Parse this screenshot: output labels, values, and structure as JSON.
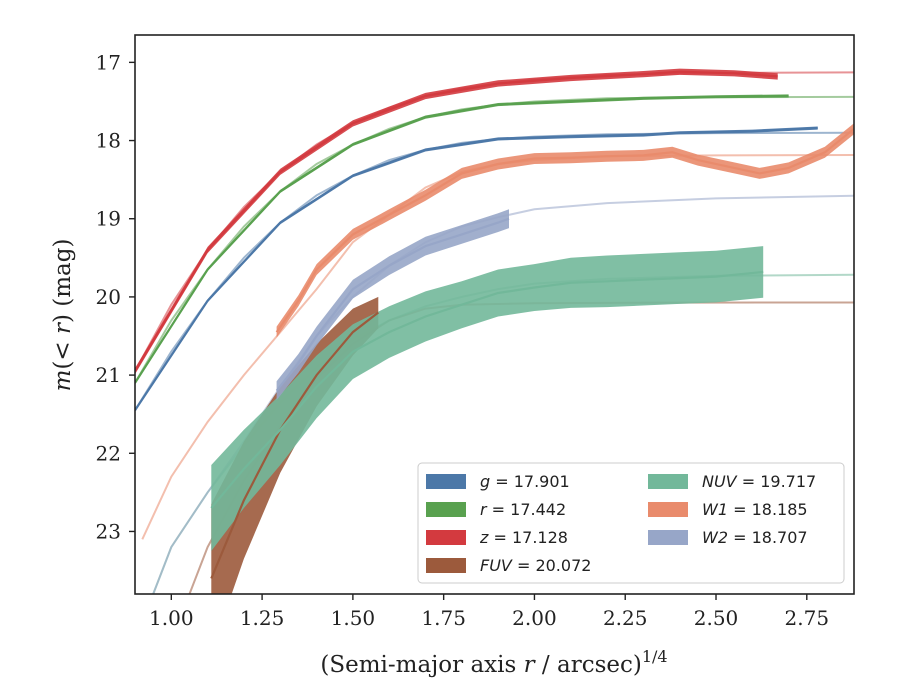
{
  "chart_data": {
    "type": "line",
    "xlabel": "(Semi-major axis r / arcsec)^{1/4}",
    "ylabel": "m(< r) (mag)",
    "xlim": [
      0.9,
      2.88
    ],
    "ylim": [
      23.8,
      16.65
    ],
    "y_inverted": true,
    "x_ticks": [
      "1.00",
      "1.25",
      "1.50",
      "1.75",
      "2.00",
      "2.25",
      "2.50",
      "2.75"
    ],
    "x_tick_values": [
      1.0,
      1.25,
      1.5,
      1.75,
      2.0,
      2.25,
      2.5,
      2.75
    ],
    "y_ticks": [
      "17",
      "18",
      "19",
      "20",
      "21",
      "22",
      "23"
    ],
    "y_tick_values": [
      17,
      18,
      19,
      20,
      21,
      22,
      23
    ],
    "grid": false,
    "legend_position": "lower-right",
    "series": [
      {
        "name": "g = 17.901",
        "color": "#4c78a8",
        "fit": [
          [
            0.9,
            21.45
          ],
          [
            1.0,
            20.7
          ],
          [
            1.1,
            20.05
          ],
          [
            1.2,
            19.5
          ],
          [
            1.3,
            19.05
          ],
          [
            1.4,
            18.7
          ],
          [
            1.5,
            18.45
          ],
          [
            1.6,
            18.25
          ],
          [
            1.7,
            18.12
          ],
          [
            1.8,
            18.03
          ],
          [
            1.9,
            17.98
          ],
          [
            2.0,
            17.95
          ],
          [
            2.2,
            17.92
          ],
          [
            2.5,
            17.905
          ],
          [
            2.88,
            17.901
          ]
        ],
        "data": [
          [
            0.9,
            21.45
          ],
          [
            1.1,
            20.05
          ],
          [
            1.3,
            19.05
          ],
          [
            1.5,
            18.45
          ],
          [
            1.7,
            18.12
          ],
          [
            1.9,
            17.98
          ],
          [
            2.1,
            17.95
          ],
          [
            2.3,
            17.93
          ],
          [
            2.4,
            17.9
          ],
          [
            2.6,
            17.88
          ],
          [
            2.78,
            17.84
          ]
        ],
        "band_halfwidth": 0.02
      },
      {
        "name": "r = 17.442",
        "color": "#59a14f",
        "fit": [
          [
            0.9,
            21.1
          ],
          [
            1.0,
            20.3
          ],
          [
            1.1,
            19.65
          ],
          [
            1.2,
            19.1
          ],
          [
            1.3,
            18.65
          ],
          [
            1.4,
            18.3
          ],
          [
            1.5,
            18.05
          ],
          [
            1.6,
            17.85
          ],
          [
            1.7,
            17.7
          ],
          [
            1.8,
            17.6
          ],
          [
            1.9,
            17.54
          ],
          [
            2.0,
            17.5
          ],
          [
            2.2,
            17.46
          ],
          [
            2.5,
            17.445
          ],
          [
            2.88,
            17.442
          ]
        ],
        "data": [
          [
            0.9,
            21.1
          ],
          [
            1.1,
            19.65
          ],
          [
            1.3,
            18.65
          ],
          [
            1.5,
            18.05
          ],
          [
            1.7,
            17.7
          ],
          [
            1.9,
            17.54
          ],
          [
            2.1,
            17.5
          ],
          [
            2.3,
            17.46
          ],
          [
            2.5,
            17.44
          ],
          [
            2.7,
            17.43
          ]
        ],
        "band_halfwidth": 0.02
      },
      {
        "name": "z = 17.128",
        "color": "#d33a3f",
        "fit": [
          [
            0.9,
            20.95
          ],
          [
            1.0,
            20.1
          ],
          [
            1.1,
            19.4
          ],
          [
            1.2,
            18.85
          ],
          [
            1.3,
            18.4
          ],
          [
            1.4,
            18.05
          ],
          [
            1.5,
            17.78
          ],
          [
            1.6,
            17.58
          ],
          [
            1.7,
            17.43
          ],
          [
            1.8,
            17.33
          ],
          [
            1.9,
            17.27
          ],
          [
            2.0,
            17.22
          ],
          [
            2.2,
            17.16
          ],
          [
            2.5,
            17.135
          ],
          [
            2.88,
            17.128
          ]
        ],
        "data": [
          [
            0.9,
            20.95
          ],
          [
            1.1,
            19.4
          ],
          [
            1.3,
            18.4
          ],
          [
            1.5,
            17.78
          ],
          [
            1.7,
            17.43
          ],
          [
            1.9,
            17.27
          ],
          [
            2.1,
            17.2
          ],
          [
            2.3,
            17.15
          ],
          [
            2.4,
            17.12
          ],
          [
            2.55,
            17.14
          ],
          [
            2.67,
            17.18
          ]
        ],
        "band_halfwidth": 0.04
      },
      {
        "name": "FUV = 20.072",
        "color": "#9c5a3c",
        "fit": [
          [
            1.05,
            23.8
          ],
          [
            1.1,
            23.2
          ],
          [
            1.2,
            22.35
          ],
          [
            1.3,
            21.65
          ],
          [
            1.4,
            21.05
          ],
          [
            1.5,
            20.6
          ],
          [
            1.6,
            20.3
          ],
          [
            1.7,
            20.15
          ],
          [
            1.8,
            20.1
          ],
          [
            2.0,
            20.08
          ],
          [
            2.4,
            20.073
          ],
          [
            2.88,
            20.072
          ]
        ],
        "data": [
          [
            1.11,
            23.6
          ],
          [
            1.2,
            22.6
          ],
          [
            1.3,
            21.7
          ],
          [
            1.4,
            21.0
          ],
          [
            1.5,
            20.45
          ],
          [
            1.57,
            20.2
          ]
        ],
        "band_halfwidth": [
          0.95,
          0.75,
          0.55,
          0.4,
          0.3,
          0.2
        ]
      },
      {
        "name": "NUV = 19.717",
        "color": "#72b89a",
        "fit": [
          [
            0.95,
            23.8
          ],
          [
            1.0,
            23.2
          ],
          [
            1.1,
            22.5
          ],
          [
            1.2,
            21.9
          ],
          [
            1.3,
            21.35
          ],
          [
            1.4,
            20.9
          ],
          [
            1.5,
            20.55
          ],
          [
            1.6,
            20.3
          ],
          [
            1.7,
            20.12
          ],
          [
            1.8,
            20.0
          ],
          [
            1.9,
            19.9
          ],
          [
            2.0,
            19.83
          ],
          [
            2.2,
            19.77
          ],
          [
            2.5,
            19.73
          ],
          [
            2.88,
            19.717
          ]
        ],
        "data": [
          [
            1.11,
            22.7
          ],
          [
            1.2,
            22.2
          ],
          [
            1.3,
            21.7
          ],
          [
            1.4,
            21.15
          ],
          [
            1.5,
            20.7
          ],
          [
            1.6,
            20.45
          ],
          [
            1.7,
            20.25
          ],
          [
            1.8,
            20.1
          ],
          [
            1.9,
            19.95
          ],
          [
            2.0,
            19.88
          ],
          [
            2.1,
            19.82
          ],
          [
            2.2,
            19.8
          ],
          [
            2.3,
            19.78
          ],
          [
            2.4,
            19.76
          ],
          [
            2.5,
            19.74
          ],
          [
            2.63,
            19.68
          ]
        ],
        "band_halfwidth": [
          0.55,
          0.5,
          0.45,
          0.4,
          0.35,
          0.33,
          0.32,
          0.3,
          0.3,
          0.3,
          0.32,
          0.33,
          0.33,
          0.33,
          0.33,
          0.33
        ]
      },
      {
        "name": "W1 = 18.185",
        "color": "#e98b6c",
        "fit": [
          [
            0.92,
            23.1
          ],
          [
            1.0,
            22.3
          ],
          [
            1.1,
            21.6
          ],
          [
            1.2,
            21.0
          ],
          [
            1.3,
            20.45
          ],
          [
            1.4,
            19.9
          ],
          [
            1.5,
            19.3
          ],
          [
            1.6,
            18.95
          ],
          [
            1.7,
            18.6
          ],
          [
            1.8,
            18.4
          ],
          [
            1.9,
            18.3
          ],
          [
            2.0,
            18.25
          ],
          [
            2.2,
            18.2
          ],
          [
            2.5,
            18.19
          ],
          [
            2.88,
            18.185
          ]
        ],
        "data": [
          [
            1.29,
            20.45
          ],
          [
            1.35,
            20.05
          ],
          [
            1.4,
            19.65
          ],
          [
            1.5,
            19.2
          ],
          [
            1.6,
            18.95
          ],
          [
            1.7,
            18.7
          ],
          [
            1.8,
            18.42
          ],
          [
            1.9,
            18.3
          ],
          [
            2.0,
            18.23
          ],
          [
            2.1,
            18.22
          ],
          [
            2.2,
            18.2
          ],
          [
            2.3,
            18.19
          ],
          [
            2.38,
            18.15
          ],
          [
            2.45,
            18.25
          ],
          [
            2.55,
            18.35
          ],
          [
            2.62,
            18.42
          ],
          [
            2.7,
            18.35
          ],
          [
            2.8,
            18.15
          ],
          [
            2.88,
            17.85
          ]
        ],
        "band_halfwidth": 0.07
      },
      {
        "name": "W2 = 18.707",
        "color": "#97a6c8",
        "fit": [
          [
            0.95,
            23.8
          ],
          [
            1.0,
            23.2
          ],
          [
            1.1,
            22.5
          ],
          [
            1.2,
            21.85
          ],
          [
            1.3,
            21.15
          ],
          [
            1.4,
            20.5
          ],
          [
            1.5,
            20.0
          ],
          [
            1.6,
            19.6
          ],
          [
            1.7,
            19.3
          ],
          [
            1.8,
            19.1
          ],
          [
            1.9,
            18.98
          ],
          [
            2.0,
            18.88
          ],
          [
            2.2,
            18.8
          ],
          [
            2.5,
            18.74
          ],
          [
            2.88,
            18.707
          ]
        ],
        "data": [
          [
            1.29,
            21.2
          ],
          [
            1.35,
            20.85
          ],
          [
            1.4,
            20.5
          ],
          [
            1.5,
            19.9
          ],
          [
            1.6,
            19.6
          ],
          [
            1.7,
            19.35
          ],
          [
            1.8,
            19.2
          ],
          [
            1.9,
            19.05
          ],
          [
            1.93,
            19.0
          ]
        ],
        "band_halfwidth": 0.12
      }
    ]
  }
}
